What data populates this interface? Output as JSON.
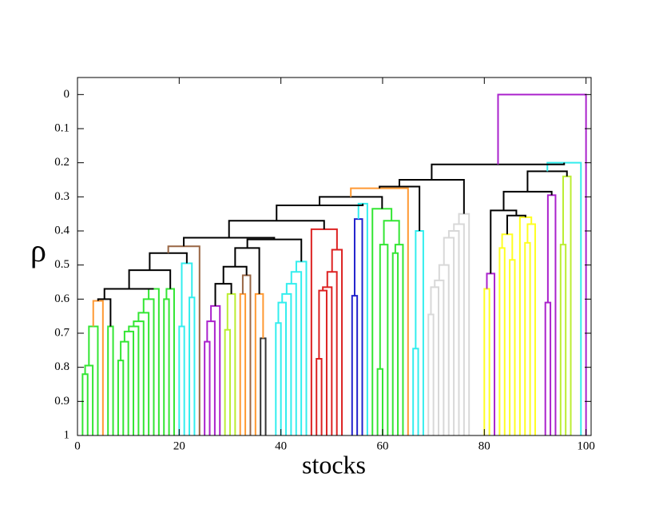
{
  "chart_data": {
    "type": "dendrogram",
    "xlabel": "stocks",
    "ylabel": "ρ",
    "xlim": [
      0,
      101
    ],
    "ylim": [
      1,
      -0.05
    ],
    "xticks": [
      0,
      20,
      40,
      60,
      80,
      100
    ],
    "yticks": [
      0,
      0.1,
      0.2,
      0.3,
      0.4,
      0.5,
      0.6,
      0.7,
      0.8,
      0.9,
      1
    ],
    "links": [
      {
        "x": [
          1,
          2
        ],
        "y": [
          1,
          1
        ],
        "top": 0.82,
        "color": "#33e633"
      },
      {
        "x": [
          1.5,
          3
        ],
        "y": [
          0.82,
          1
        ],
        "top": 0.795,
        "color": "#33e633"
      },
      {
        "x": [
          2.25,
          4
        ],
        "y": [
          0.795,
          1
        ],
        "top": 0.68,
        "color": "#33e633"
      },
      {
        "x": [
          3.1,
          5
        ],
        "y": [
          0.68,
          1
        ],
        "top": 0.605,
        "color": "#ff9933"
      },
      {
        "x": [
          6,
          7
        ],
        "y": [
          1,
          1
        ],
        "top": 0.68,
        "color": "#33e633"
      },
      {
        "x": [
          4.05,
          6.5
        ],
        "y": [
          0.605,
          0.68
        ],
        "top": 0.6,
        "color": "#000000"
      },
      {
        "x": [
          8,
          9
        ],
        "y": [
          1,
          1
        ],
        "top": 0.78,
        "color": "#33e633"
      },
      {
        "x": [
          8.5,
          10
        ],
        "y": [
          0.78,
          1
        ],
        "top": 0.725,
        "color": "#33e633"
      },
      {
        "x": [
          9.25,
          11
        ],
        "y": [
          0.725,
          1
        ],
        "top": 0.695,
        "color": "#33e633"
      },
      {
        "x": [
          10.1,
          12
        ],
        "y": [
          0.695,
          1
        ],
        "top": 0.68,
        "color": "#33e633"
      },
      {
        "x": [
          11.05,
          13
        ],
        "y": [
          0.68,
          1
        ],
        "top": 0.665,
        "color": "#33e633"
      },
      {
        "x": [
          12,
          14
        ],
        "y": [
          0.665,
          1
        ],
        "top": 0.64,
        "color": "#33e633"
      },
      {
        "x": [
          13,
          15
        ],
        "y": [
          0.64,
          1
        ],
        "top": 0.6,
        "color": "#33e633"
      },
      {
        "x": [
          14,
          16
        ],
        "y": [
          0.6,
          1
        ],
        "top": 0.57,
        "color": "#33e633"
      },
      {
        "x": [
          5.3,
          15
        ],
        "y": [
          0.6,
          0.57
        ],
        "top": 0.57,
        "color": "#000000"
      },
      {
        "x": [
          17,
          18
        ],
        "y": [
          1,
          1
        ],
        "top": 0.6,
        "color": "#33e633"
      },
      {
        "x": [
          17.5,
          19
        ],
        "y": [
          0.6,
          1
        ],
        "top": 0.57,
        "color": "#33e633"
      },
      {
        "x": [
          10.15,
          18.25
        ],
        "y": [
          0.57,
          0.57
        ],
        "top": 0.515,
        "color": "#000000"
      },
      {
        "x": [
          20,
          21
        ],
        "y": [
          1,
          1
        ],
        "top": 0.68,
        "color": "#33eeee"
      },
      {
        "x": [
          22,
          23
        ],
        "y": [
          1,
          1
        ],
        "top": 0.595,
        "color": "#33eeee"
      },
      {
        "x": [
          20.5,
          22.5
        ],
        "y": [
          0.68,
          0.595
        ],
        "top": 0.495,
        "color": "#33eeee"
      },
      {
        "x": [
          14.2,
          21.5
        ],
        "y": [
          0.515,
          0.495
        ],
        "top": 0.465,
        "color": "#000000"
      },
      {
        "x": [
          17.85,
          24
        ],
        "y": [
          0.465,
          1
        ],
        "top": 0.445,
        "color": "#996644"
      },
      {
        "x": [
          25,
          26
        ],
        "y": [
          1,
          1
        ],
        "top": 0.725,
        "color": "#aa22cc"
      },
      {
        "x": [
          25.5,
          27
        ],
        "y": [
          0.725,
          1
        ],
        "top": 0.665,
        "color": "#aa22cc"
      },
      {
        "x": [
          26.25,
          28
        ],
        "y": [
          0.665,
          1
        ],
        "top": 0.62,
        "color": "#aa22cc"
      },
      {
        "x": [
          29,
          30
        ],
        "y": [
          1,
          1
        ],
        "top": 0.69,
        "color": "#bbee33"
      },
      {
        "x": [
          29.5,
          31
        ],
        "y": [
          0.69,
          1
        ],
        "top": 0.585,
        "color": "#bbee33"
      },
      {
        "x": [
          27.1,
          30.25
        ],
        "y": [
          0.62,
          0.585
        ],
        "top": 0.555,
        "color": "#000000"
      },
      {
        "x": [
          32,
          33
        ],
        "y": [
          1,
          1
        ],
        "top": 0.585,
        "color": "#ff9933"
      },
      {
        "x": [
          32.5,
          34
        ],
        "y": [
          0.585,
          1
        ],
        "top": 0.53,
        "color": "#996644"
      },
      {
        "x": [
          28.7,
          33.25
        ],
        "y": [
          0.555,
          0.53
        ],
        "top": 0.505,
        "color": "#000000"
      },
      {
        "x": [
          36,
          37
        ],
        "y": [
          1,
          1
        ],
        "top": 0.715,
        "color": "#333333"
      },
      {
        "x": [
          35,
          36.5
        ],
        "y": [
          1,
          0.715
        ],
        "top": 0.585,
        "color": "#ff9933"
      },
      {
        "x": [
          31,
          35.75
        ],
        "y": [
          0.505,
          0.585
        ],
        "top": 0.45,
        "color": "#000000"
      },
      {
        "x": [
          39,
          40
        ],
        "y": [
          1,
          1
        ],
        "top": 0.67,
        "color": "#33eeee"
      },
      {
        "x": [
          39.5,
          41
        ],
        "y": [
          0.67,
          1
        ],
        "top": 0.61,
        "color": "#33eeee"
      },
      {
        "x": [
          40.25,
          42
        ],
        "y": [
          0.61,
          1
        ],
        "top": 0.585,
        "color": "#33eeee"
      },
      {
        "x": [
          41.13,
          43
        ],
        "y": [
          0.585,
          1
        ],
        "top": 0.555,
        "color": "#33eeee"
      },
      {
        "x": [
          42.06,
          44
        ],
        "y": [
          0.555,
          1
        ],
        "top": 0.52,
        "color": "#33eeee"
      },
      {
        "x": [
          43.03,
          45
        ],
        "y": [
          0.52,
          1
        ],
        "top": 0.49,
        "color": "#33eeee"
      },
      {
        "x": [
          33.4,
          44.02
        ],
        "y": [
          0.45,
          0.49
        ],
        "top": 0.425,
        "color": "#000000"
      },
      {
        "x": [
          47,
          48
        ],
        "y": [
          1,
          1
        ],
        "top": 0.775,
        "color": "#dd2222"
      },
      {
        "x": [
          47.5,
          49
        ],
        "y": [
          0.775,
          1
        ],
        "top": 0.575,
        "color": "#dd2222"
      },
      {
        "x": [
          48.25,
          50
        ],
        "y": [
          0.575,
          1
        ],
        "top": 0.565,
        "color": "#dd2222"
      },
      {
        "x": [
          49.13,
          51
        ],
        "y": [
          0.565,
          1
        ],
        "top": 0.52,
        "color": "#dd2222"
      },
      {
        "x": [
          50.06,
          52
        ],
        "y": [
          0.52,
          1
        ],
        "top": 0.455,
        "color": "#dd2222"
      },
      {
        "x": [
          46,
          51.03
        ],
        "y": [
          1,
          0.455
        ],
        "top": 0.395,
        "color": "#dd2222"
      },
      {
        "x": [
          20.9,
          38.7
        ],
        "y": [
          0.445,
          0.425
        ],
        "top": 0.42,
        "color": "#000000"
      },
      {
        "x": [
          29.8,
          48.5
        ],
        "y": [
          0.42,
          0.395
        ],
        "top": 0.37,
        "color": "#000000"
      },
      {
        "x": [
          54,
          55
        ],
        "y": [
          1,
          1
        ],
        "top": 0.59,
        "color": "#2222cc"
      },
      {
        "x": [
          54.5,
          56
        ],
        "y": [
          0.59,
          1
        ],
        "top": 0.365,
        "color": "#2222cc"
      },
      {
        "x": [
          55.25,
          57
        ],
        "y": [
          0.365,
          1
        ],
        "top": 0.32,
        "color": "#33eeee"
      },
      {
        "x": [
          39.15,
          56.1
        ],
        "y": [
          0.37,
          0.32
        ],
        "top": 0.325,
        "color": "#000000"
      },
      {
        "x": [
          59,
          60
        ],
        "y": [
          1,
          1
        ],
        "top": 0.805,
        "color": "#33e633"
      },
      {
        "x": [
          59.5,
          61
        ],
        "y": [
          0.805,
          1
        ],
        "top": 0.44,
        "color": "#33e633"
      },
      {
        "x": [
          62,
          63
        ],
        "y": [
          1,
          1
        ],
        "top": 0.465,
        "color": "#33e633"
      },
      {
        "x": [
          62.5,
          64
        ],
        "y": [
          0.465,
          1
        ],
        "top": 0.44,
        "color": "#33e633"
      },
      {
        "x": [
          60.25,
          63.25
        ],
        "y": [
          0.44,
          0.44
        ],
        "top": 0.37,
        "color": "#33e633"
      },
      {
        "x": [
          58,
          61.75
        ],
        "y": [
          1,
          0.37
        ],
        "top": 0.335,
        "color": "#33e633"
      },
      {
        "x": [
          47.6,
          59.9
        ],
        "y": [
          0.325,
          0.335
        ],
        "top": 0.3,
        "color": "#000000"
      },
      {
        "x": [
          53.75,
          65
        ],
        "y": [
          0.3,
          1
        ],
        "top": 0.275,
        "color": "#ff9933"
      },
      {
        "x": [
          66,
          67
        ],
        "y": [
          1,
          1
        ],
        "top": 0.745,
        "color": "#33eeee"
      },
      {
        "x": [
          66.5,
          68
        ],
        "y": [
          0.745,
          1
        ],
        "top": 0.4,
        "color": "#33eeee"
      },
      {
        "x": [
          59.4,
          67.25
        ],
        "y": [
          0.275,
          0.4
        ],
        "top": 0.27,
        "color": "#000000"
      },
      {
        "x": [
          69,
          70
        ],
        "y": [
          1,
          1
        ],
        "top": 0.645,
        "color": "#d8d8d8"
      },
      {
        "x": [
          69.5,
          71
        ],
        "y": [
          0.645,
          1
        ],
        "top": 0.565,
        "color": "#d8d8d8"
      },
      {
        "x": [
          70.25,
          72
        ],
        "y": [
          0.565,
          1
        ],
        "top": 0.545,
        "color": "#d8d8d8"
      },
      {
        "x": [
          71.13,
          73
        ],
        "y": [
          0.545,
          1
        ],
        "top": 0.5,
        "color": "#d8d8d8"
      },
      {
        "x": [
          72.06,
          74
        ],
        "y": [
          0.5,
          1
        ],
        "top": 0.42,
        "color": "#d8d8d8"
      },
      {
        "x": [
          73.03,
          75
        ],
        "y": [
          0.42,
          1
        ],
        "top": 0.4,
        "color": "#d8d8d8"
      },
      {
        "x": [
          74.02,
          76
        ],
        "y": [
          0.4,
          1
        ],
        "top": 0.38,
        "color": "#d8d8d8"
      },
      {
        "x": [
          75.01,
          77
        ],
        "y": [
          0.38,
          1
        ],
        "top": 0.35,
        "color": "#d8d8d8"
      },
      {
        "x": [
          63.3,
          76
        ],
        "y": [
          0.27,
          0.35
        ],
        "top": 0.25,
        "color": "#000000"
      },
      {
        "x": [
          80,
          81
        ],
        "y": [
          1,
          1
        ],
        "top": 0.57,
        "color": "#ffff22"
      },
      {
        "x": [
          80.5,
          82
        ],
        "y": [
          0.57,
          1
        ],
        "top": 0.525,
        "color": "#aa22cc"
      },
      {
        "x": [
          83,
          84
        ],
        "y": [
          1,
          1
        ],
        "top": 0.45,
        "color": "#ffff22"
      },
      {
        "x": [
          85,
          86
        ],
        "y": [
          1,
          1
        ],
        "top": 0.485,
        "color": "#ffff22"
      },
      {
        "x": [
          83.5,
          85.5
        ],
        "y": [
          0.45,
          0.485
        ],
        "top": 0.41,
        "color": "#ffff22"
      },
      {
        "x": [
          88,
          89
        ],
        "y": [
          1,
          1
        ],
        "top": 0.435,
        "color": "#ffff22"
      },
      {
        "x": [
          88.5,
          90
        ],
        "y": [
          0.435,
          1
        ],
        "top": 0.38,
        "color": "#ffff22"
      },
      {
        "x": [
          87,
          89.25
        ],
        "y": [
          1,
          0.38
        ],
        "top": 0.36,
        "color": "#ffff22"
      },
      {
        "x": [
          84.5,
          88.1
        ],
        "y": [
          0.41,
          0.36
        ],
        "top": 0.355,
        "color": "#000000"
      },
      {
        "x": [
          81.25,
          86.3
        ],
        "y": [
          0.525,
          0.355
        ],
        "top": 0.34,
        "color": "#000000"
      },
      {
        "x": [
          92,
          93
        ],
        "y": [
          1,
          1
        ],
        "top": 0.61,
        "color": "#aa22cc"
      },
      {
        "x": [
          92.5,
          94
        ],
        "y": [
          0.61,
          1
        ],
        "top": 0.295,
        "color": "#aa22cc"
      },
      {
        "x": [
          83.8,
          93.25
        ],
        "y": [
          0.34,
          0.295
        ],
        "top": 0.285,
        "color": "#000000"
      },
      {
        "x": [
          95,
          96
        ],
        "y": [
          1,
          1
        ],
        "top": 0.44,
        "color": "#bbee33"
      },
      {
        "x": [
          95.5,
          97
        ],
        "y": [
          0.44,
          1
        ],
        "top": 0.24,
        "color": "#bbee33"
      },
      {
        "x": [
          88.5,
          96.25
        ],
        "y": [
          0.285,
          0.24
        ],
        "top": 0.225,
        "color": "#000000"
      },
      {
        "x": [
          92.4,
          99
        ],
        "y": [
          0.225,
          1
        ],
        "top": 0.2,
        "color": "#33eeee"
      },
      {
        "x": [
          69.65,
          95.7
        ],
        "y": [
          0.25,
          0.2
        ],
        "top": 0.205,
        "color": "#000000"
      },
      {
        "x": [
          82.7,
          100
        ],
        "y": [
          0.205,
          1
        ],
        "top": 0,
        "color": "#aa22cc"
      }
    ]
  }
}
